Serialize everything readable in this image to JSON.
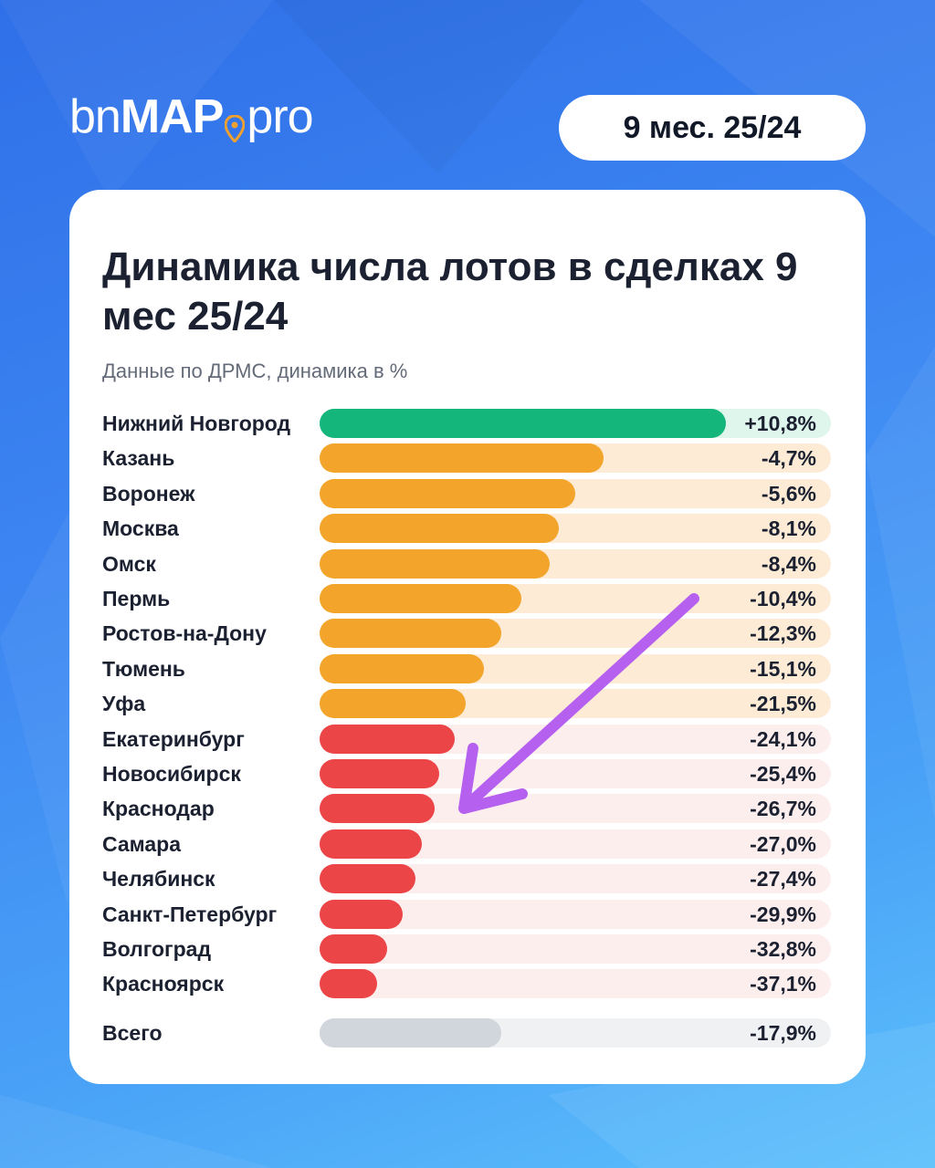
{
  "brand": {
    "logo_bn": "bn",
    "logo_map": "MAP",
    "logo_pro": "pro",
    "pin_color": "#f0a030"
  },
  "period_badge": "9 мес. 25/24",
  "colors": {
    "positive": "#15b67c",
    "positive_track": "#dff6ec",
    "moderate": "#f2a52a",
    "moderate_track": "#fdebd6",
    "strong": "#eb4548",
    "strong_track": "#fdeeee",
    "total": "#d1d5dc",
    "total_track": "#f0f1f3",
    "annotation_arrow": "#b660f0"
  },
  "chart_data": {
    "type": "bar",
    "title": "Динамика числа лотов в сделках 9 мес 25/24",
    "subtitle": "Данные по ДРМС, динамика в %",
    "categories": [
      "Нижний Новгород",
      "Казань",
      "Воронеж",
      "Москва",
      "Омск",
      "Пермь",
      "Ростов-на-Дону",
      "Тюмень",
      "Уфа",
      "Екатеринбург",
      "Новосибирск",
      "Краснодар",
      "Самара",
      "Челябинск",
      "Санкт-Петербург",
      "Волгоград",
      "Красноярск"
    ],
    "values": [
      10.8,
      -4.7,
      -5.6,
      -8.1,
      -8.4,
      -10.4,
      -12.3,
      -15.1,
      -21.5,
      -24.1,
      -25.4,
      -26.7,
      -27.0,
      -27.4,
      -29.9,
      -32.8,
      -37.1
    ],
    "labels": [
      "+10,8%",
      "-4,7%",
      "-5,6%",
      "-8,1%",
      "-8,4%",
      "-10,4%",
      "-12,3%",
      "-15,1%",
      "-21,5%",
      "-24,1%",
      "-25,4%",
      "-26,7%",
      "-27,0%",
      "-27,4%",
      "-29,9%",
      "-32,8%",
      "-37,1%"
    ],
    "groups": [
      "positive",
      "moderate",
      "moderate",
      "moderate",
      "moderate",
      "moderate",
      "moderate",
      "moderate",
      "moderate",
      "strong",
      "strong",
      "strong",
      "strong",
      "strong",
      "strong",
      "strong",
      "strong"
    ],
    "bar_fractions": [
      0.795,
      0.555,
      0.5,
      0.467,
      0.45,
      0.395,
      0.355,
      0.322,
      0.285,
      0.265,
      0.234,
      0.225,
      0.2,
      0.187,
      0.163,
      0.133,
      0.113
    ],
    "total": {
      "label": "Всего",
      "value": -17.9,
      "value_label": "-17,9%",
      "bar_fraction": 0.355
    },
    "annotation": "downward arrow"
  }
}
